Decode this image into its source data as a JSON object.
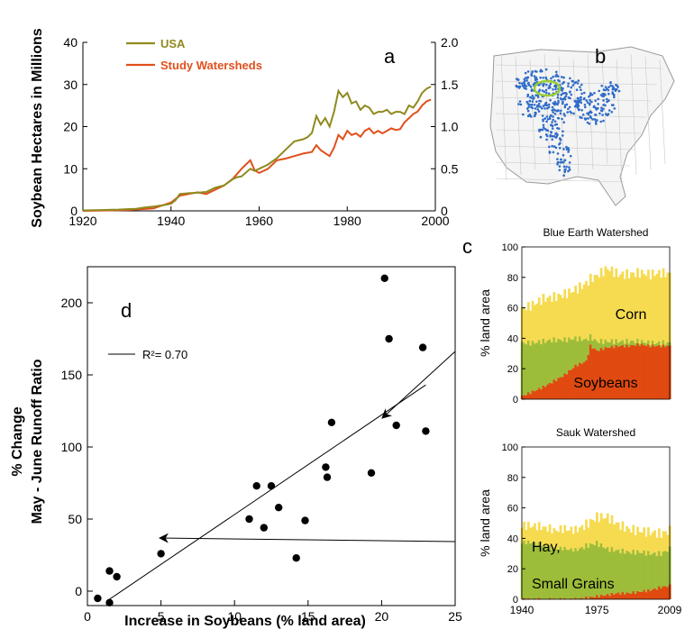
{
  "colors": {
    "usa": "#8f8a1e",
    "watersheds": "#e0501c",
    "corn": "#f6db50",
    "soy": "#e04a10",
    "hay": "#9dbd3a",
    "ellipse": "#9acd32",
    "soy_dots": "#2f6cc8",
    "arrow": "#000000"
  },
  "chart_data": [
    {
      "panel": "a",
      "type": "line",
      "ylabel": "Soybean Hectares in Millions",
      "xlim": [
        1920,
        2000
      ],
      "ylim_left": [
        0,
        40
      ],
      "ylim_right": [
        0,
        2.0
      ],
      "x_ticks": [
        "1920",
        "1940",
        "1960",
        "1980",
        "2000"
      ],
      "y_ticks_left": [
        "0",
        "10",
        "20",
        "30",
        "40"
      ],
      "y_ticks_right": [
        "0",
        "0.5",
        "1.0",
        "1.5",
        "2.0"
      ],
      "series": [
        {
          "name": "USA",
          "axis": "left",
          "x": [
            1920,
            1924,
            1928,
            1930,
            1932,
            1934,
            1936,
            1938,
            1940,
            1941,
            1942,
            1944,
            1946,
            1948,
            1950,
            1952,
            1954,
            1955,
            1956,
            1958,
            1959,
            1960,
            1962,
            1964,
            1966,
            1968,
            1970,
            1971,
            1972,
            1973,
            1974,
            1975,
            1976,
            1977,
            1978,
            1979,
            1980,
            1981,
            1982,
            1983,
            1984,
            1985,
            1986,
            1987,
            1988,
            1989,
            1990,
            1991,
            1992,
            1993,
            1994,
            1995,
            1996,
            1997,
            1998,
            1999
          ],
          "values": [
            0.1,
            0.2,
            0.3,
            0.4,
            0.5,
            0.8,
            1.0,
            1.3,
            1.7,
            2.5,
            4.0,
            4.2,
            4.3,
            4.5,
            5.5,
            6.0,
            7.5,
            8.0,
            8.2,
            10.0,
            9.5,
            10.0,
            11.0,
            12.5,
            14.5,
            16.5,
            17.0,
            17.5,
            18.5,
            22.5,
            20.5,
            22.0,
            20.0,
            23.5,
            28.5,
            27.0,
            28.0,
            25.5,
            26.0,
            24.0,
            25.0,
            24.5,
            23.0,
            23.5,
            23.5,
            24.0,
            23.0,
            23.5,
            23.5,
            23.0,
            25.0,
            24.5,
            26.0,
            28.0,
            29.0,
            29.5
          ]
        },
        {
          "name": "Study Watersheds",
          "axis": "right",
          "x": [
            1920,
            1930,
            1936,
            1940,
            1942,
            1944,
            1946,
            1948,
            1950,
            1952,
            1954,
            1956,
            1957,
            1958,
            1959,
            1960,
            1962,
            1964,
            1966,
            1968,
            1970,
            1972,
            1973,
            1974,
            1976,
            1977,
            1978,
            1979,
            1980,
            1981,
            1982,
            1983,
            1984,
            1985,
            1986,
            1987,
            1988,
            1989,
            1990,
            1991,
            1992,
            1993,
            1994,
            1995,
            1996,
            1997,
            1998,
            1999
          ],
          "values": [
            0,
            0.01,
            0.03,
            0.1,
            0.18,
            0.2,
            0.22,
            0.2,
            0.25,
            0.3,
            0.38,
            0.5,
            0.55,
            0.6,
            0.48,
            0.45,
            0.5,
            0.6,
            0.62,
            0.65,
            0.68,
            0.7,
            0.78,
            0.72,
            0.65,
            0.75,
            0.9,
            0.85,
            0.95,
            0.9,
            0.92,
            0.88,
            0.95,
            0.98,
            0.92,
            0.95,
            0.92,
            0.95,
            0.98,
            0.96,
            0.97,
            1.05,
            1.1,
            1.15,
            1.18,
            1.25,
            1.3,
            1.32
          ]
        }
      ]
    },
    {
      "panel": "b",
      "type": "map"
    },
    {
      "panel": "c",
      "type": "area",
      "xlim": [
        1940,
        2009
      ],
      "x_ticks": [
        "1940",
        "1975",
        "2009"
      ],
      "y_ticks": [
        "0",
        "20",
        "40",
        "60",
        "80",
        "100"
      ],
      "ylabel": "% land area",
      "charts": [
        {
          "title": "Blue Earth Watershed",
          "labels": [
            "Corn",
            "Soybeans"
          ],
          "years": [
            1940,
            1945,
            1950,
            1955,
            1960,
            1965,
            1970,
            1972,
            1975,
            1980,
            1985,
            1990,
            1995,
            2000,
            2005,
            2009
          ],
          "soybeans": [
            2,
            5,
            8,
            12,
            16,
            22,
            25,
            35,
            32,
            34,
            35,
            35,
            36,
            35,
            35,
            35
          ],
          "hay": [
            35,
            32,
            30,
            27,
            23,
            18,
            14,
            6,
            6,
            4,
            3,
            3,
            2,
            2,
            2,
            2
          ],
          "corn": [
            22,
            25,
            28,
            28,
            30,
            32,
            37,
            38,
            43,
            48,
            44,
            44,
            45,
            45,
            46,
            45
          ]
        },
        {
          "title": "Sauk Watershed",
          "labels": [
            "Hay,",
            "Small Grains"
          ],
          "years": [
            1940,
            1945,
            1950,
            1955,
            1960,
            1965,
            1970,
            1975,
            1980,
            1985,
            1990,
            1995,
            2000,
            2005,
            2009
          ],
          "soybeans": [
            0,
            0,
            0,
            0,
            0,
            0,
            1,
            2,
            3,
            4,
            4,
            5,
            6,
            8,
            9
          ],
          "hay": [
            37,
            37,
            35,
            33,
            33,
            32,
            34,
            35,
            30,
            28,
            27,
            26,
            24,
            22,
            24
          ],
          "corn": [
            11,
            11,
            12,
            12,
            13,
            13,
            14,
            17,
            21,
            17,
            15,
            14,
            14,
            13,
            12
          ]
        }
      ]
    },
    {
      "panel": "d",
      "type": "scatter",
      "xlabel": "Increase in Soybeans (% land area)",
      "ylabel_lines": [
        "% Change",
        "May - June Runoff Ratio"
      ],
      "xlim": [
        0,
        25
      ],
      "ylim": [
        -10,
        225
      ],
      "x_ticks": [
        "0",
        "5",
        "10",
        "15",
        "20",
        "25"
      ],
      "y_ticks": [
        "0",
        "50",
        "100",
        "150",
        "200"
      ],
      "legend": "R²= 0.70",
      "points": [
        [
          0.7,
          -5
        ],
        [
          1.5,
          14
        ],
        [
          1.5,
          -8
        ],
        [
          2.0,
          10
        ],
        [
          5.0,
          26
        ],
        [
          11,
          50
        ],
        [
          11.5,
          73
        ],
        [
          12.0,
          44
        ],
        [
          12.5,
          73
        ],
        [
          13,
          58
        ],
        [
          14.2,
          23
        ],
        [
          14.8,
          49
        ],
        [
          16.2,
          86
        ],
        [
          16.3,
          79
        ],
        [
          16.6,
          117
        ],
        [
          19.3,
          82
        ],
        [
          20.2,
          217
        ],
        [
          20.5,
          175
        ],
        [
          21,
          115
        ],
        [
          22.8,
          169
        ],
        [
          23,
          111
        ]
      ],
      "fit": {
        "x1": 1.3,
        "y1": -7,
        "x2": 23,
        "y2": 143
      }
    }
  ],
  "panel_labels": {
    "a": "a",
    "b": "b",
    "c": "c",
    "d": "d"
  }
}
